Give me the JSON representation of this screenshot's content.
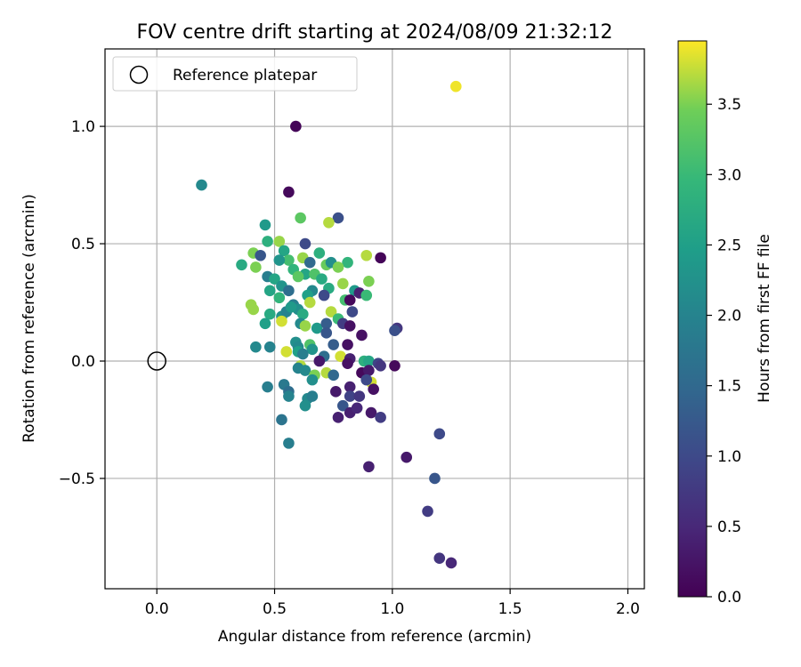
{
  "chart_data": {
    "type": "scatter",
    "title": "FOV centre drift starting at 2024/08/09 21:32:12",
    "xlabel": "Angular distance from reference (arcmin)",
    "ylabel": "Rotation from reference (arcmin)",
    "xlim": [
      -0.22,
      2.07
    ],
    "ylim": [
      -0.97,
      1.33
    ],
    "xticks": [
      0.0,
      0.5,
      1.0,
      1.5,
      2.0
    ],
    "xtick_labels": [
      "0.0",
      "0.5",
      "1.0",
      "1.5",
      "2.0"
    ],
    "yticks": [
      -0.5,
      0.0,
      0.5,
      1.0
    ],
    "ytick_labels": [
      "−0.5",
      "0.0",
      "0.5",
      "1.0"
    ],
    "grid": true,
    "legend": {
      "position": "top-left",
      "entries": [
        {
          "label": "Reference platepar",
          "marker": "open-circle"
        }
      ]
    },
    "reference_point": {
      "x": 0.0,
      "y": 0.0
    },
    "colorbar": {
      "label": "Hours from first FF file",
      "range": [
        0.0,
        3.95
      ],
      "ticks": [
        0.0,
        0.5,
        1.0,
        1.5,
        2.0,
        2.5,
        3.0,
        3.5
      ],
      "tick_labels": [
        "0.0",
        "0.5",
        "1.0",
        "1.5",
        "2.0",
        "2.5",
        "3.0",
        "3.5"
      ],
      "colormap": "viridis"
    },
    "points": [
      {
        "x": 1.27,
        "y": 1.17,
        "h": 3.9
      },
      {
        "x": 0.59,
        "y": 1.0,
        "h": 0.05
      },
      {
        "x": 0.19,
        "y": 0.75,
        "h": 2.1
      },
      {
        "x": 0.56,
        "y": 0.72,
        "h": 0.1
      },
      {
        "x": 0.61,
        "y": 0.61,
        "h": 3.3
      },
      {
        "x": 0.77,
        "y": 0.61,
        "h": 1.1
      },
      {
        "x": 0.73,
        "y": 0.59,
        "h": 3.7
      },
      {
        "x": 0.46,
        "y": 0.58,
        "h": 2.4
      },
      {
        "x": 0.47,
        "y": 0.51,
        "h": 2.8
      },
      {
        "x": 0.52,
        "y": 0.51,
        "h": 3.6
      },
      {
        "x": 0.63,
        "y": 0.5,
        "h": 1.0
      },
      {
        "x": 0.54,
        "y": 0.47,
        "h": 2.6
      },
      {
        "x": 0.41,
        "y": 0.46,
        "h": 3.5
      },
      {
        "x": 0.44,
        "y": 0.45,
        "h": 1.2
      },
      {
        "x": 0.62,
        "y": 0.44,
        "h": 3.6
      },
      {
        "x": 0.69,
        "y": 0.46,
        "h": 2.8
      },
      {
        "x": 0.89,
        "y": 0.45,
        "h": 3.7
      },
      {
        "x": 0.95,
        "y": 0.44,
        "h": 0.05
      },
      {
        "x": 0.56,
        "y": 0.43,
        "h": 3.1
      },
      {
        "x": 0.52,
        "y": 0.43,
        "h": 2.3
      },
      {
        "x": 0.65,
        "y": 0.42,
        "h": 1.5
      },
      {
        "x": 0.72,
        "y": 0.41,
        "h": 3.4
      },
      {
        "x": 0.74,
        "y": 0.42,
        "h": 2.2
      },
      {
        "x": 0.81,
        "y": 0.42,
        "h": 2.9
      },
      {
        "x": 0.36,
        "y": 0.41,
        "h": 2.7
      },
      {
        "x": 0.42,
        "y": 0.4,
        "h": 3.5
      },
      {
        "x": 0.58,
        "y": 0.39,
        "h": 2.9
      },
      {
        "x": 0.77,
        "y": 0.4,
        "h": 3.5
      },
      {
        "x": 0.63,
        "y": 0.37,
        "h": 2.6
      },
      {
        "x": 0.67,
        "y": 0.37,
        "h": 3.2
      },
      {
        "x": 0.6,
        "y": 0.36,
        "h": 3.3
      },
      {
        "x": 0.47,
        "y": 0.36,
        "h": 1.9
      },
      {
        "x": 0.5,
        "y": 0.35,
        "h": 2.6
      },
      {
        "x": 0.7,
        "y": 0.35,
        "h": 2.7
      },
      {
        "x": 0.79,
        "y": 0.33,
        "h": 3.6
      },
      {
        "x": 0.9,
        "y": 0.34,
        "h": 3.5
      },
      {
        "x": 0.53,
        "y": 0.32,
        "h": 2.3
      },
      {
        "x": 0.56,
        "y": 0.3,
        "h": 1.6
      },
      {
        "x": 0.48,
        "y": 0.3,
        "h": 2.6
      },
      {
        "x": 0.66,
        "y": 0.3,
        "h": 2.1
      },
      {
        "x": 0.73,
        "y": 0.31,
        "h": 2.7
      },
      {
        "x": 0.84,
        "y": 0.3,
        "h": 2.4
      },
      {
        "x": 0.86,
        "y": 0.29,
        "h": 0.4
      },
      {
        "x": 0.89,
        "y": 0.28,
        "h": 3.0
      },
      {
        "x": 0.52,
        "y": 0.27,
        "h": 2.9
      },
      {
        "x": 0.64,
        "y": 0.28,
        "h": 2.5
      },
      {
        "x": 0.71,
        "y": 0.28,
        "h": 1.0
      },
      {
        "x": 0.8,
        "y": 0.26,
        "h": 3.1
      },
      {
        "x": 0.82,
        "y": 0.26,
        "h": 0.1
      },
      {
        "x": 0.58,
        "y": 0.24,
        "h": 1.9
      },
      {
        "x": 0.6,
        "y": 0.22,
        "h": 2.2
      },
      {
        "x": 0.65,
        "y": 0.25,
        "h": 3.7
      },
      {
        "x": 0.4,
        "y": 0.24,
        "h": 3.6
      },
      {
        "x": 0.41,
        "y": 0.22,
        "h": 3.6
      },
      {
        "x": 0.48,
        "y": 0.2,
        "h": 2.7
      },
      {
        "x": 0.53,
        "y": 0.19,
        "h": 2.2
      },
      {
        "x": 0.55,
        "y": 0.21,
        "h": 2.0
      },
      {
        "x": 0.57,
        "y": 0.23,
        "h": 2.4
      },
      {
        "x": 0.62,
        "y": 0.2,
        "h": 2.7
      },
      {
        "x": 0.74,
        "y": 0.21,
        "h": 3.7
      },
      {
        "x": 0.77,
        "y": 0.18,
        "h": 3.0
      },
      {
        "x": 0.83,
        "y": 0.21,
        "h": 1.0
      },
      {
        "x": 0.46,
        "y": 0.16,
        "h": 2.5
      },
      {
        "x": 0.53,
        "y": 0.17,
        "h": 3.8
      },
      {
        "x": 0.61,
        "y": 0.16,
        "h": 2.1
      },
      {
        "x": 0.63,
        "y": 0.15,
        "h": 3.6
      },
      {
        "x": 0.68,
        "y": 0.14,
        "h": 2.4
      },
      {
        "x": 0.72,
        "y": 0.16,
        "h": 1.3
      },
      {
        "x": 0.79,
        "y": 0.16,
        "h": 0.8
      },
      {
        "x": 0.82,
        "y": 0.15,
        "h": 0.2
      },
      {
        "x": 1.02,
        "y": 0.14,
        "h": 0.7
      },
      {
        "x": 1.01,
        "y": 0.13,
        "h": 1.1
      },
      {
        "x": 0.72,
        "y": 0.12,
        "h": 1.2
      },
      {
        "x": 0.87,
        "y": 0.11,
        "h": 0.2
      },
      {
        "x": 0.59,
        "y": 0.08,
        "h": 2.2
      },
      {
        "x": 0.6,
        "y": 0.06,
        "h": 2.1
      },
      {
        "x": 0.65,
        "y": 0.07,
        "h": 3.2
      },
      {
        "x": 0.66,
        "y": 0.05,
        "h": 2.3
      },
      {
        "x": 0.75,
        "y": 0.07,
        "h": 1.3
      },
      {
        "x": 0.81,
        "y": 0.07,
        "h": 0.2
      },
      {
        "x": 0.42,
        "y": 0.06,
        "h": 2.1
      },
      {
        "x": 0.48,
        "y": 0.06,
        "h": 2.0
      },
      {
        "x": 0.55,
        "y": 0.04,
        "h": 3.8
      },
      {
        "x": 0.6,
        "y": 0.04,
        "h": 2.5
      },
      {
        "x": 0.62,
        "y": 0.03,
        "h": 1.9
      },
      {
        "x": 0.71,
        "y": 0.02,
        "h": 1.6
      },
      {
        "x": 0.78,
        "y": 0.02,
        "h": 3.8
      },
      {
        "x": 0.82,
        "y": 0.01,
        "h": 0.4
      },
      {
        "x": 0.69,
        "y": 0.0,
        "h": 0.3
      },
      {
        "x": 0.81,
        "y": -0.01,
        "h": 0.2
      },
      {
        "x": 0.88,
        "y": 0.0,
        "h": 2.8
      },
      {
        "x": 0.9,
        "y": 0.0,
        "h": 2.6
      },
      {
        "x": 0.94,
        "y": -0.01,
        "h": 0.9
      },
      {
        "x": 0.95,
        "y": -0.02,
        "h": 0.7
      },
      {
        "x": 1.01,
        "y": -0.02,
        "h": 0.1
      },
      {
        "x": 0.61,
        "y": -0.02,
        "h": 3.7
      },
      {
        "x": 0.6,
        "y": -0.03,
        "h": 2.0
      },
      {
        "x": 0.63,
        "y": -0.04,
        "h": 2.1
      },
      {
        "x": 0.67,
        "y": -0.06,
        "h": 3.5
      },
      {
        "x": 0.72,
        "y": -0.05,
        "h": 3.7
      },
      {
        "x": 0.75,
        "y": -0.06,
        "h": 1.5
      },
      {
        "x": 0.87,
        "y": -0.05,
        "h": 0.1
      },
      {
        "x": 0.9,
        "y": -0.04,
        "h": 0.3
      },
      {
        "x": 0.91,
        "y": -0.09,
        "h": 3.8
      },
      {
        "x": 0.89,
        "y": -0.08,
        "h": 1.0
      },
      {
        "x": 0.66,
        "y": -0.08,
        "h": 2.2
      },
      {
        "x": 0.54,
        "y": -0.1,
        "h": 1.8
      },
      {
        "x": 0.47,
        "y": -0.11,
        "h": 1.9
      },
      {
        "x": 0.56,
        "y": -0.13,
        "h": 1.6
      },
      {
        "x": 0.76,
        "y": -0.13,
        "h": 0.3
      },
      {
        "x": 0.82,
        "y": -0.11,
        "h": 0.4
      },
      {
        "x": 0.92,
        "y": -0.12,
        "h": 0.2
      },
      {
        "x": 0.56,
        "y": -0.15,
        "h": 2.0
      },
      {
        "x": 0.64,
        "y": -0.16,
        "h": 2.1
      },
      {
        "x": 0.66,
        "y": -0.15,
        "h": 1.9
      },
      {
        "x": 0.82,
        "y": -0.15,
        "h": 0.9
      },
      {
        "x": 0.86,
        "y": -0.15,
        "h": 0.7
      },
      {
        "x": 0.63,
        "y": -0.19,
        "h": 2.2
      },
      {
        "x": 0.79,
        "y": -0.19,
        "h": 1.2
      },
      {
        "x": 0.82,
        "y": -0.22,
        "h": 0.4
      },
      {
        "x": 0.85,
        "y": -0.2,
        "h": 0.5
      },
      {
        "x": 0.77,
        "y": -0.24,
        "h": 0.4
      },
      {
        "x": 0.91,
        "y": -0.22,
        "h": 0.3
      },
      {
        "x": 0.95,
        "y": -0.24,
        "h": 0.8
      },
      {
        "x": 0.53,
        "y": -0.25,
        "h": 1.7
      },
      {
        "x": 1.2,
        "y": -0.31,
        "h": 1.0
      },
      {
        "x": 0.56,
        "y": -0.35,
        "h": 1.9
      },
      {
        "x": 1.06,
        "y": -0.41,
        "h": 0.3
      },
      {
        "x": 0.9,
        "y": -0.45,
        "h": 0.4
      },
      {
        "x": 1.18,
        "y": -0.5,
        "h": 1.2
      },
      {
        "x": 1.15,
        "y": -0.64,
        "h": 0.8
      },
      {
        "x": 1.2,
        "y": -0.84,
        "h": 0.7
      },
      {
        "x": 1.25,
        "y": -0.86,
        "h": 0.5
      }
    ]
  }
}
